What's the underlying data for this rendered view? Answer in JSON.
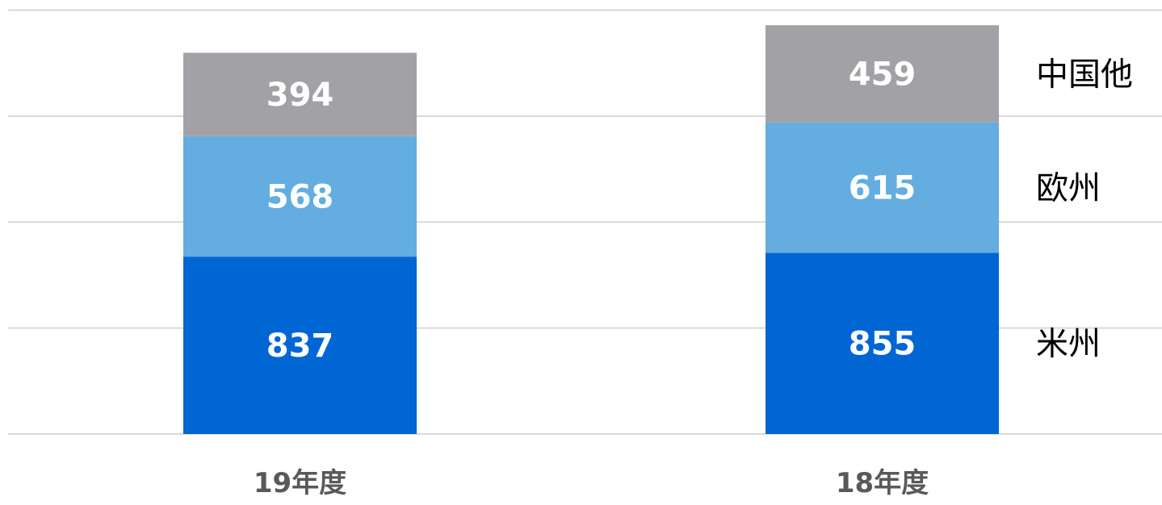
{
  "chart_data": {
    "type": "bar",
    "stacked": true,
    "categories": [
      "19年度",
      "18年度"
    ],
    "series": [
      {
        "name": "米州",
        "values": [
          837,
          855
        ],
        "color": "#0066d4"
      },
      {
        "name": "欧州",
        "values": [
          568,
          615
        ],
        "color": "#63ade0"
      },
      {
        "name": "中国他",
        "values": [
          394,
          459
        ],
        "color": "#a2a2a6"
      }
    ],
    "ylim": [
      0,
      2000
    ],
    "grid": true,
    "legend": "right"
  }
}
